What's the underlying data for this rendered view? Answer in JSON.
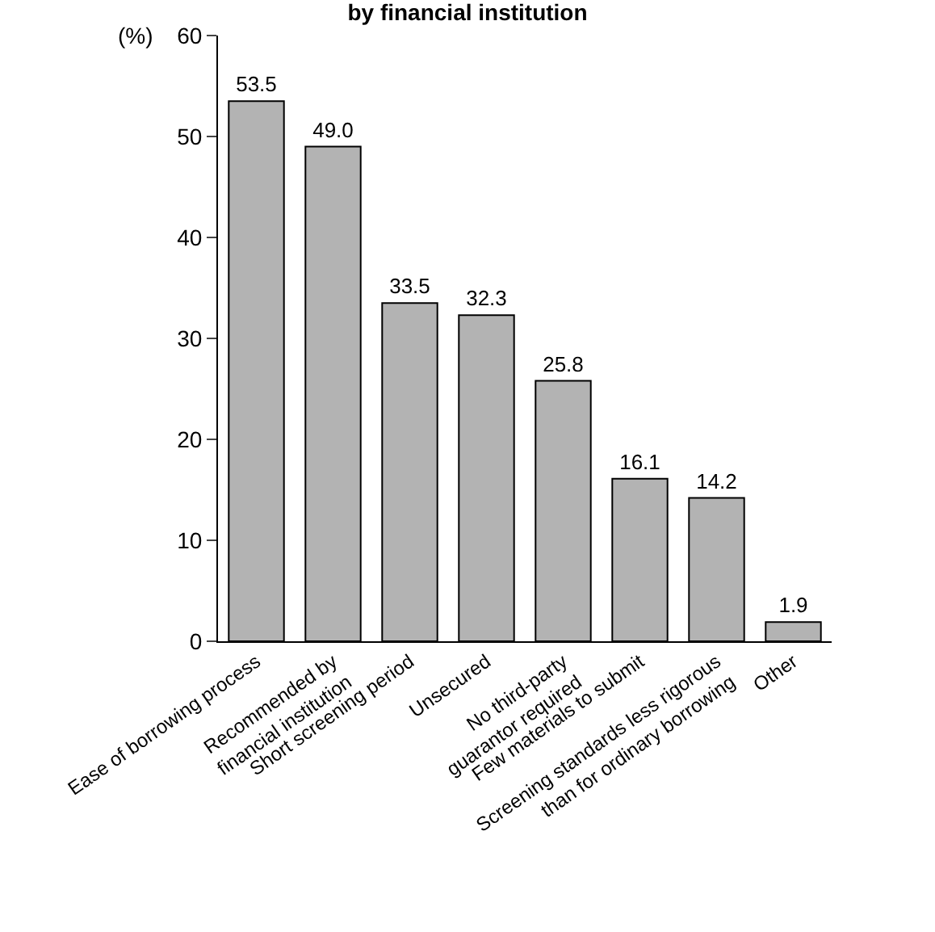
{
  "chart_data": {
    "type": "bar",
    "title": "by financial institution",
    "ylabel": "(%)",
    "categories": [
      "Ease of borrowing process",
      "Recommended by\nfinancial institution",
      "Short screening period",
      "Unsecured",
      "No third-party\nguarantor required",
      "Few materials to submit",
      "Screening standards less rigorous\nthan for ordinary borrowing",
      "Other"
    ],
    "values": [
      53.5,
      49.0,
      33.5,
      32.3,
      25.8,
      16.1,
      14.2,
      1.9
    ],
    "value_labels": [
      "53.5",
      "49.0",
      "33.5",
      "32.3",
      "25.8",
      "16.1",
      "14.2",
      "1.9"
    ],
    "color": "#b3b3b3",
    "ylim": [
      0,
      60
    ],
    "yticks": [
      0,
      10,
      20,
      30,
      40,
      50,
      60
    ],
    "legend": false
  }
}
